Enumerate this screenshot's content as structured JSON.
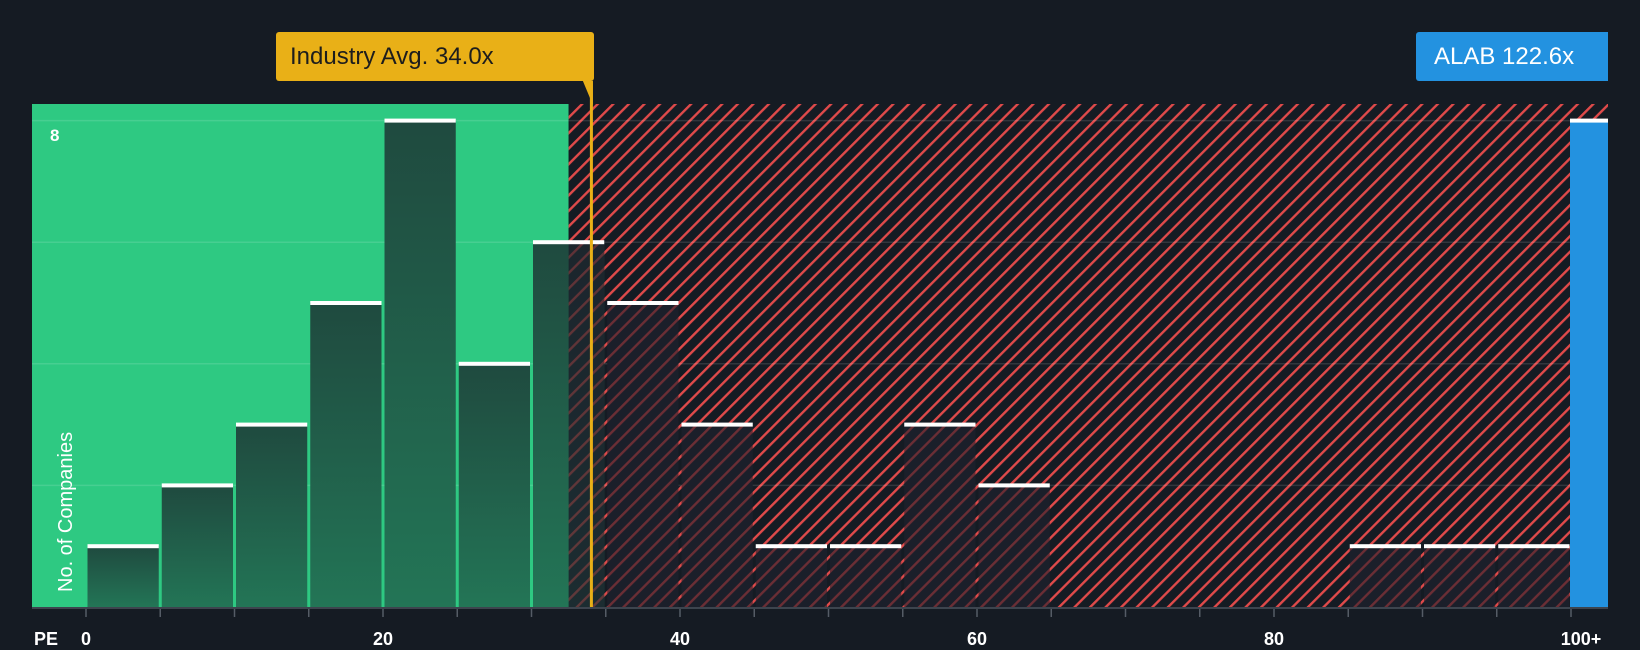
{
  "chart_data": {
    "type": "bar",
    "title": "",
    "xlabel": "PE",
    "ylabel": "No. of Companies",
    "x_ticks": [
      "0",
      "20",
      "40",
      "60",
      "80",
      "100+"
    ],
    "y_ticks_labeled": [
      "8"
    ],
    "ylim": [
      0,
      8.3
    ],
    "bin_width": 5,
    "categories": [
      "0-5",
      "5-10",
      "10-15",
      "15-20",
      "20-25",
      "25-30",
      "30-35",
      "35-40",
      "40-45",
      "45-50",
      "50-55",
      "55-60",
      "60-65",
      "65-70",
      "70-75",
      "75-80",
      "80-85",
      "85-90",
      "90-95",
      "95-100",
      "100+"
    ],
    "values": [
      1,
      2,
      3,
      5,
      8,
      4,
      6,
      5,
      3,
      1,
      1,
      3,
      2,
      0,
      0,
      0,
      0,
      1,
      1,
      1,
      8
    ],
    "highlight": {
      "category": "100+",
      "label": "ALAB 122.6x",
      "value": 122.6
    },
    "reference_line": {
      "label": "Industry Avg. 34.0x",
      "value": 34.0
    },
    "shaded_regions": [
      {
        "from": 0,
        "to": 32.5,
        "style": "green-solid"
      },
      {
        "from": 32.5,
        "to": 100,
        "style": "red-hatched"
      }
    ],
    "grid": true,
    "legend": null
  },
  "labels": {
    "industry_avg": "Industry Avg. 34.0x",
    "company": "ALAB 122.6x",
    "x_axis": "PE",
    "y_axis": "No. of Companies",
    "y_top_tick": "8"
  },
  "colors": {
    "background": "#151b23",
    "green_region": "#2ec982",
    "green_bar": "#1f5a45",
    "hatch": "#e04a4a",
    "industry_avg": "#e9b017",
    "company": "#2392e0",
    "bar_cap": "#ffffff"
  }
}
